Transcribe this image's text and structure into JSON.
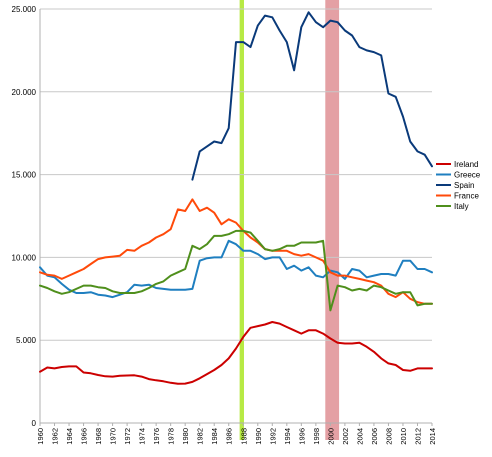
{
  "chart_data": {
    "type": "line",
    "title": "",
    "xlabel": "",
    "ylabel": "",
    "ylim": [
      0,
      25000
    ],
    "xlim": [
      1960,
      2014
    ],
    "y_ticks": [
      0,
      5000,
      10000,
      15000,
      20000,
      25000
    ],
    "y_tick_labels": [
      "0",
      "5.000",
      "10.000",
      "15.000",
      "20.000",
      "25.000"
    ],
    "x_tick_labels": [
      "1960",
      "1962",
      "1964",
      "1966",
      "1968",
      "1970",
      "1972",
      "1974",
      "1976",
      "1978",
      "1980",
      "1982",
      "1984",
      "1986",
      "1988",
      "1990",
      "1992",
      "1994",
      "1996",
      "1998",
      "2000",
      "2002",
      "2004",
      "2006",
      "2008",
      "2010",
      "2012",
      "2014"
    ],
    "grid": "horizontal",
    "legend_position": "right",
    "highlights": [
      {
        "from": 1987.5,
        "to": 1988.1,
        "color": "#b7ea44"
      },
      {
        "from": 1999.3,
        "to": 2001.2,
        "color": "#e4a0a4"
      }
    ],
    "series": [
      {
        "name": "Ireland",
        "color": "#cc0000",
        "x": [
          1960,
          1961,
          1962,
          1963,
          1964,
          1965,
          1966,
          1967,
          1968,
          1969,
          1970,
          1971,
          1972,
          1973,
          1974,
          1975,
          1976,
          1977,
          1978,
          1979,
          1980,
          1981,
          1982,
          1983,
          1984,
          1985,
          1986,
          1987,
          1988,
          1989,
          1990,
          1991,
          1992,
          1993,
          1994,
          1995,
          1996,
          1997,
          1998,
          1999,
          2000,
          2001,
          2002,
          2003,
          2004,
          2005,
          2006,
          2007,
          2008,
          2009,
          2010,
          2011,
          2012,
          2013,
          2014
        ],
        "y": [
          3100,
          3350,
          3300,
          3380,
          3420,
          3420,
          3050,
          3000,
          2900,
          2820,
          2800,
          2850,
          2870,
          2880,
          2800,
          2650,
          2580,
          2520,
          2430,
          2370,
          2380,
          2480,
          2700,
          2950,
          3200,
          3500,
          3900,
          4500,
          5200,
          5750,
          5850,
          5950,
          6100,
          6000,
          5800,
          5600,
          5400,
          5600,
          5600,
          5400,
          5100,
          4850,
          4800,
          4800,
          4850,
          4600,
          4300,
          3900,
          3600,
          3500,
          3200,
          3150,
          3300,
          3300,
          3300
        ]
      },
      {
        "name": "Greece",
        "color": "#1f7fc0",
        "x": [
          1960,
          1961,
          1962,
          1963,
          1964,
          1965,
          1966,
          1967,
          1968,
          1969,
          1970,
          1971,
          1972,
          1973,
          1974,
          1975,
          1976,
          1977,
          1978,
          1979,
          1980,
          1981,
          1982,
          1983,
          1984,
          1985,
          1986,
          1987,
          1988,
          1989,
          1990,
          1991,
          1992,
          1993,
          1994,
          1995,
          1996,
          1997,
          1998,
          1999,
          2000,
          2001,
          2002,
          2003,
          2004,
          2005,
          2006,
          2007,
          2008,
          2009,
          2010,
          2011,
          2012,
          2013,
          2014
        ],
        "y": [
          9400,
          8900,
          8800,
          8400,
          8050,
          7850,
          7850,
          7900,
          7750,
          7700,
          7600,
          7750,
          7900,
          8350,
          8300,
          8350,
          8150,
          8100,
          8050,
          8050,
          8050,
          8100,
          9800,
          9950,
          10000,
          10000,
          11000,
          10800,
          10400,
          10400,
          10200,
          9900,
          10000,
          10000,
          9300,
          9500,
          9200,
          9400,
          8900,
          8800,
          9200,
          9100,
          8700,
          9300,
          9200,
          8800,
          8900,
          9000,
          9000,
          8900,
          9800,
          9800,
          9300,
          9300,
          9100
        ]
      },
      {
        "name": "Spain",
        "color": "#0a3a7a",
        "x": [
          1981,
          1982,
          1983,
          1984,
          1985,
          1986,
          1987,
          1988,
          1989,
          1990,
          1991,
          1992,
          1993,
          1994,
          1995,
          1996,
          1997,
          1998,
          1999,
          2000,
          2001,
          2002,
          2003,
          2004,
          2005,
          2006,
          2007,
          2008,
          2009,
          2010,
          2011,
          2012,
          2013,
          2014
        ],
        "y": [
          14700,
          16400,
          16700,
          17000,
          16900,
          17800,
          23000,
          23000,
          22700,
          24000,
          24600,
          24500,
          23700,
          23000,
          21300,
          23900,
          24800,
          24200,
          23900,
          24300,
          24200,
          23700,
          23400,
          22700,
          22500,
          22400,
          22200,
          19900,
          19700,
          18500,
          17000,
          16400,
          16200,
          15500
        ]
      },
      {
        "name": "France",
        "color": "#ff4a0a",
        "x": [
          1960,
          1961,
          1962,
          1963,
          1964,
          1965,
          1966,
          1967,
          1968,
          1969,
          1970,
          1971,
          1972,
          1973,
          1974,
          1975,
          1976,
          1977,
          1978,
          1979,
          1980,
          1981,
          1982,
          1983,
          1984,
          1985,
          1986,
          1987,
          1988,
          1989,
          1990,
          1991,
          1992,
          1993,
          1994,
          1995,
          1996,
          1997,
          1998,
          1999,
          2000,
          2001,
          2002,
          2003,
          2004,
          2005,
          2006,
          2007,
          2008,
          2009,
          2010,
          2011,
          2012,
          2013,
          2014
        ],
        "y": [
          9100,
          8950,
          8900,
          8700,
          8900,
          9100,
          9300,
          9600,
          9900,
          10000,
          10050,
          10100,
          10450,
          10400,
          10700,
          10900,
          11200,
          11400,
          11700,
          12900,
          12800,
          13500,
          12800,
          13000,
          12700,
          12000,
          12300,
          12100,
          11600,
          11200,
          10900,
          10500,
          10400,
          10400,
          10400,
          10200,
          10100,
          10200,
          10000,
          9800,
          9100,
          8900,
          8900,
          8800,
          8700,
          8600,
          8500,
          8300,
          7800,
          7600,
          7900,
          7500,
          7300,
          7200,
          7200
        ]
      },
      {
        "name": "Italy",
        "color": "#4f8f1c",
        "x": [
          1960,
          1961,
          1962,
          1963,
          1964,
          1965,
          1966,
          1967,
          1968,
          1969,
          1970,
          1971,
          1972,
          1973,
          1974,
          1975,
          1976,
          1977,
          1978,
          1979,
          1980,
          1981,
          1982,
          1983,
          1984,
          1985,
          1986,
          1987,
          1988,
          1989,
          1990,
          1991,
          1992,
          1993,
          1994,
          1995,
          1996,
          1997,
          1998,
          1999,
          2000,
          2001,
          2002,
          2003,
          2004,
          2005,
          2006,
          2007,
          2008,
          2009,
          2010,
          2011,
          2012,
          2013,
          2014
        ],
        "y": [
          8300,
          8150,
          7950,
          7800,
          7900,
          8100,
          8300,
          8300,
          8200,
          8150,
          7950,
          7850,
          7850,
          7850,
          7950,
          8150,
          8400,
          8550,
          8900,
          9100,
          9300,
          10700,
          10500,
          10800,
          11300,
          11300,
          11400,
          11600,
          11600,
          11500,
          11000,
          10500,
          10400,
          10500,
          10700,
          10700,
          10900,
          10900,
          10900,
          11000,
          6800,
          8300,
          8200,
          8000,
          8100,
          8000,
          8300,
          8200,
          8000,
          7800,
          7900,
          7900,
          7100,
          7200,
          7200
        ]
      }
    ]
  }
}
